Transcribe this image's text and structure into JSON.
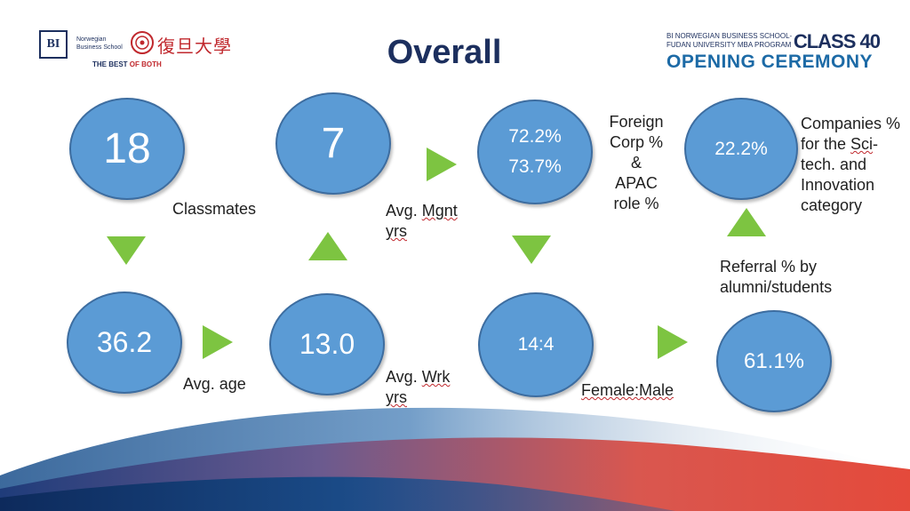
{
  "header": {
    "bi_logo": "BI",
    "bi_name_line1": "Norwegian",
    "bi_name_line2": "Business School",
    "fudan_name": "復旦大學",
    "tagline_prefix": "THE BEST ",
    "tagline_suffix": "OF BOTH",
    "title": "Overall",
    "program_line1": "BI NORWEGIAN BUSINESS SCHOOL-",
    "program_line2": "FUDAN UNIVERSITY MBA PROGRAM",
    "class": "CLASS 40",
    "ceremony": "OPENING CEREMONY"
  },
  "stats": {
    "classmates": {
      "value": "18",
      "label": "Classmates"
    },
    "mgnt": {
      "value": "7",
      "label_a": "Avg. ",
      "label_b": "Mgnt",
      "label_c": "yrs"
    },
    "foreign": {
      "value1": "72.2%",
      "value2": "73.7%",
      "label": [
        "Foreign",
        "Corp %",
        "&",
        "APAC",
        "role %"
      ]
    },
    "scitech": {
      "value": "22.2%",
      "label_1": "Companies %",
      "label_2": "for the ",
      "label_2u": "Sci",
      "label_2b": "-",
      "label_3": "tech. and",
      "label_4": "Innovation",
      "label_5": "category"
    },
    "age": {
      "value": "36.2",
      "label": "Avg. age"
    },
    "wrk": {
      "value": "13.0",
      "label_a": "Avg. ",
      "label_b": "Wrk",
      "label_c": "yrs"
    },
    "gender": {
      "value": "14:4",
      "label": "Female:Male"
    },
    "referral": {
      "value": "61.1%",
      "label_1": "Referral % by",
      "label_2": "alumni/students"
    }
  },
  "colors": {
    "circle": "#5b9bd5",
    "arrow": "#7dc441",
    "title": "#1c2f5e"
  }
}
